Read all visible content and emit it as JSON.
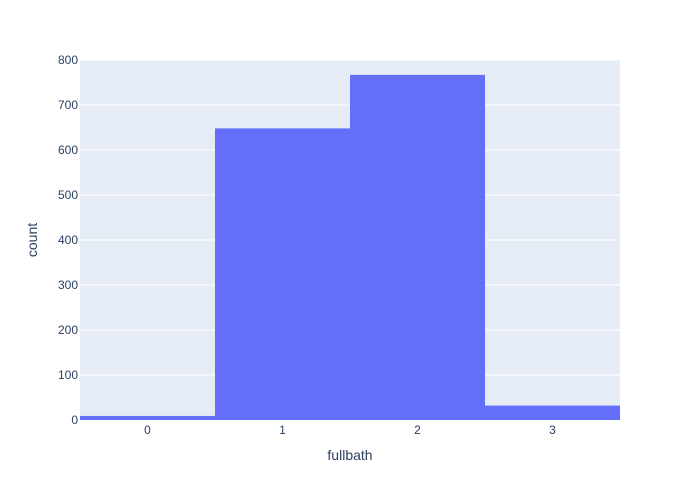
{
  "chart_data": {
    "type": "bar",
    "categories": [
      "0",
      "1",
      "2",
      "3"
    ],
    "values": [
      9,
      648,
      767,
      32
    ],
    "xlabel": "fullbath",
    "ylabel": "count",
    "ylim": [
      0,
      800
    ],
    "y_ticks": [
      0,
      100,
      200,
      300,
      400,
      500,
      600,
      700,
      800
    ],
    "grid": true,
    "bar_color": "#636efa",
    "plot_background": "#e5ecf6",
    "gridline_color": "#ffffff",
    "text_color": "#2a3f5f"
  }
}
